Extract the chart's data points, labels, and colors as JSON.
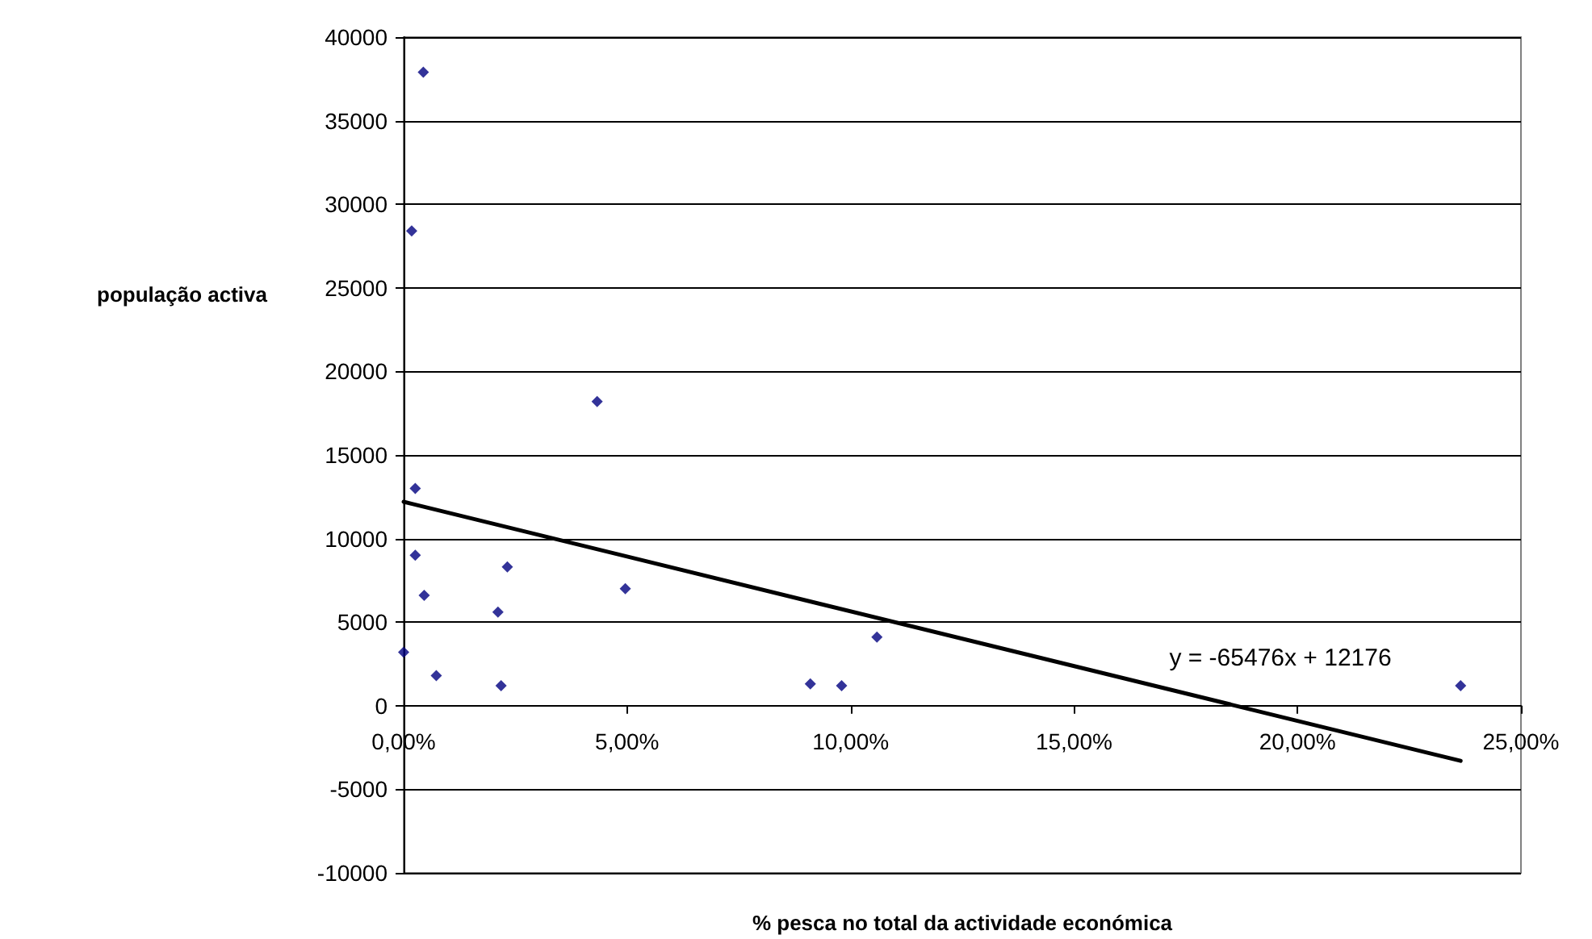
{
  "chart_data": {
    "type": "scatter",
    "xlabel": "% pesca no total da actividade económica",
    "ylabel": "população activa",
    "xlim": [
      0,
      0.25
    ],
    "xticks": [
      {
        "value": 0,
        "label": "0,00%"
      },
      {
        "value": 0.05,
        "label": "5,00%"
      },
      {
        "value": 0.1,
        "label": "10,00%"
      },
      {
        "value": 0.15,
        "label": "15,00%"
      },
      {
        "value": 0.2,
        "label": "20,00%"
      },
      {
        "value": 0.25,
        "label": "25,00%"
      }
    ],
    "ylim": [
      -10000,
      40000
    ],
    "yticks": [
      -10000,
      -5000,
      0,
      5000,
      10000,
      15000,
      20000,
      25000,
      30000,
      35000,
      40000
    ],
    "grid": "y",
    "marker": "diamond",
    "series": [
      {
        "color": "#000080",
        "x": [
          0.0044,
          0.0018,
          0.0026,
          0.0026,
          0.0046,
          0.0,
          0.0073,
          0.0433,
          0.0232,
          0.0496,
          0.0211,
          0.0218,
          0.091,
          0.098,
          0.1059,
          0.2365
        ],
        "values": [
          37900,
          28400,
          13000,
          9000,
          6600,
          3200,
          1800,
          18200,
          8300,
          7000,
          5600,
          1200,
          1300,
          1200,
          4100,
          1200
        ]
      },
      {
        "type": "line",
        "color": "#000000",
        "marker": "none",
        "line_style": "solid",
        "x": [
          0,
          0.2365
        ],
        "values": [
          12200,
          -3300
        ]
      }
    ],
    "annotations": [
      "y = -65476x + 12176"
    ]
  }
}
